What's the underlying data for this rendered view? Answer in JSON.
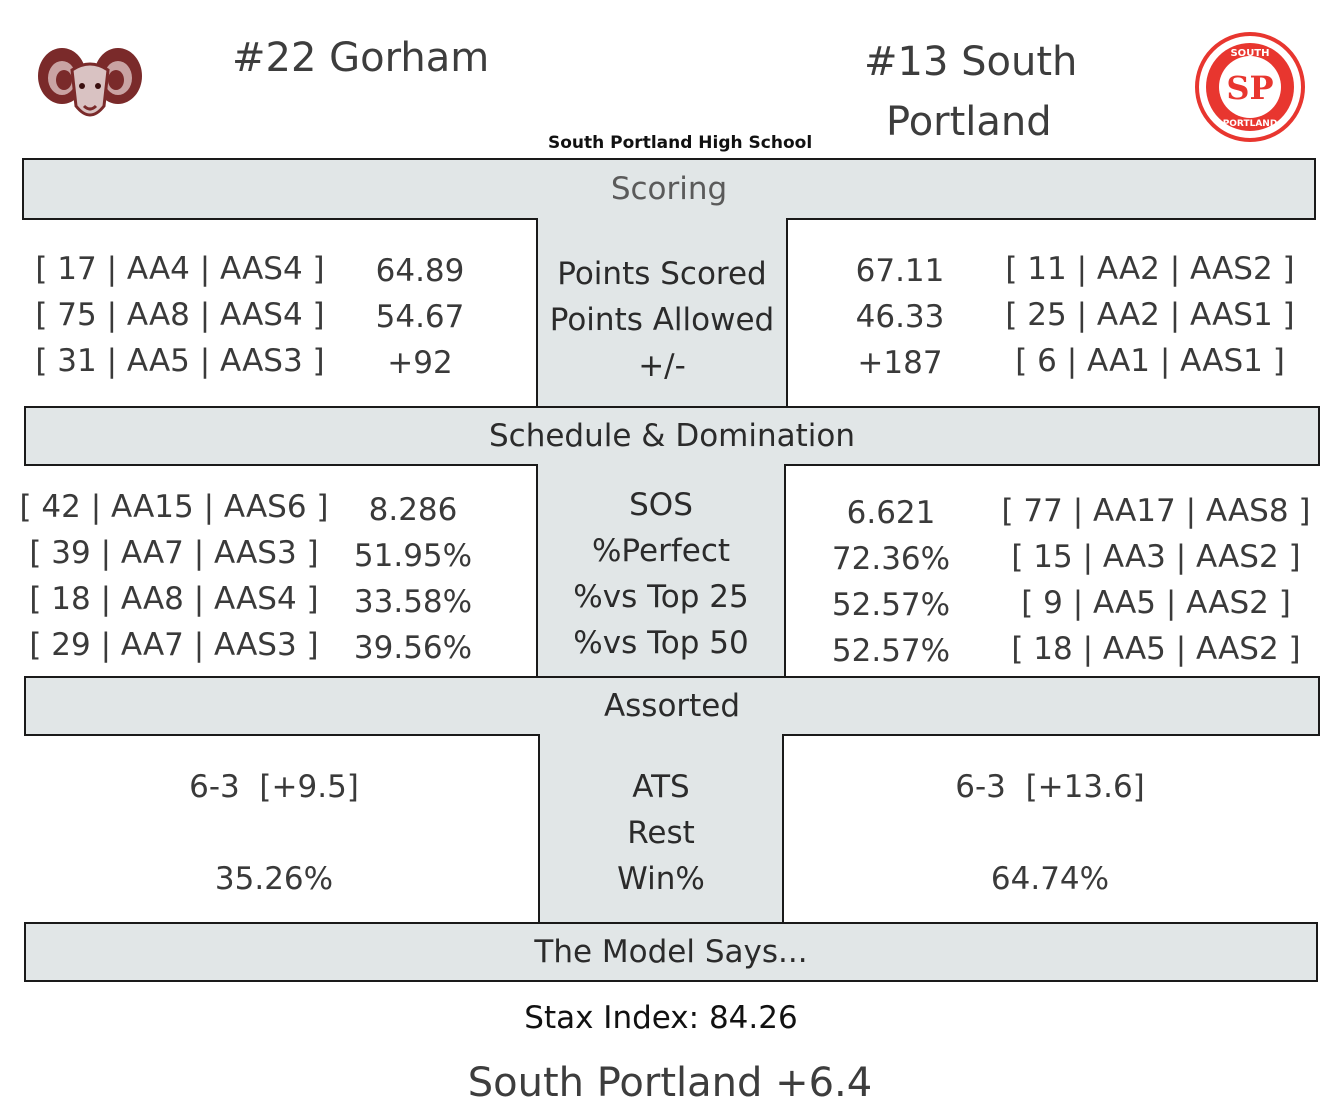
{
  "colors": {
    "header_bg": "#e1e6e7",
    "border": "#1a1a1a",
    "gorham_maroon": "#7a2a2a",
    "sp_red": "#e8362f"
  },
  "home": {
    "title": "#22 Gorham",
    "logo_icon": "ram-head-icon"
  },
  "away": {
    "title_line1": "#13 South",
    "title_line2": "Portland",
    "logo_icon": "sp-seal-icon",
    "logo_text_top": "SOUTH",
    "logo_text_mid": "SP",
    "logo_text_bottom": "PORTLAND"
  },
  "venue": "South Portland High School",
  "sections": {
    "scoring": {
      "title": "Scoring",
      "labels": [
        "Points Scored",
        "Points Allowed",
        "+/-"
      ],
      "home": {
        "ranks": [
          "[ 17 | AA4 | AAS4 ]",
          "[ 75 | AA8 | AAS4 ]",
          "[ 31 | AA5 | AAS3 ]"
        ],
        "values": [
          "64.89",
          "54.67",
          "+92"
        ]
      },
      "away": {
        "values": [
          "67.11",
          "46.33",
          "+187"
        ],
        "ranks": [
          "[ 11 | AA2 | AAS2 ]",
          "[ 25 | AA2 | AAS1 ]",
          "[ 6 | AA1 | AAS1 ]"
        ]
      }
    },
    "schedule": {
      "title": "Schedule & Domination",
      "labels": [
        "SOS",
        "%Perfect",
        "%vs Top 25",
        "%vs Top 50"
      ],
      "home": {
        "ranks": [
          "[ 42 | AA15 | AAS6 ]",
          "[ 39 | AA7 | AAS3 ]",
          "[ 18 | AA8 | AAS4 ]",
          "[ 29 | AA7 | AAS3 ]"
        ],
        "values": [
          "8.286",
          "51.95%",
          "33.58%",
          "39.56%"
        ]
      },
      "away": {
        "values": [
          "6.621",
          "72.36%",
          "52.57%",
          "52.57%"
        ],
        "ranks": [
          "[ 77 | AA17 | AAS8 ]",
          "[ 15 | AA3 | AAS2 ]",
          "[ 9 | AA5 | AAS2 ]",
          "[ 18 | AA5 | AAS2 ]"
        ]
      }
    },
    "assorted": {
      "title": "Assorted",
      "labels": [
        "ATS",
        "Rest",
        "Win%"
      ],
      "home": {
        "ats": "6-3  [+9.5]",
        "win": "35.26%"
      },
      "away": {
        "ats": "6-3  [+13.6]",
        "win": "64.74%"
      }
    },
    "model": {
      "title": "The Model Says...",
      "stax": "Stax Index: 84.26",
      "pick": "South Portland +6.4"
    }
  }
}
